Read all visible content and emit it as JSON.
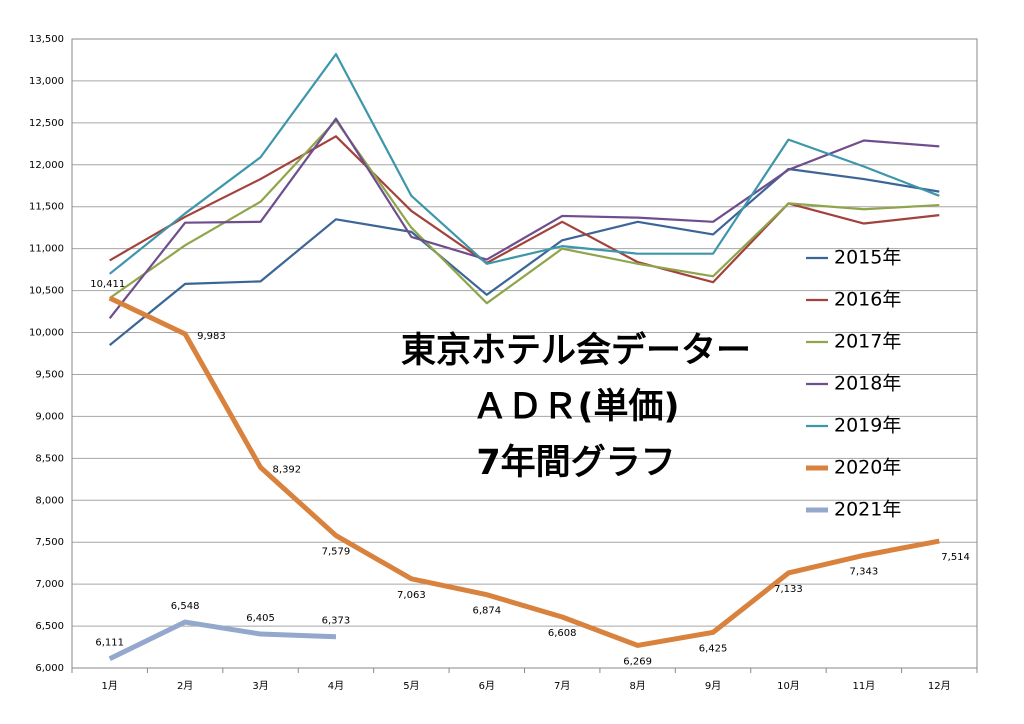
{
  "chart_data": {
    "type": "line",
    "title": [
      "東京ホテル会データー",
      "ＡＤＲ(単価)",
      "7年間グラフ"
    ],
    "categories": [
      "1月",
      "2月",
      "3月",
      "4月",
      "5月",
      "6月",
      "7月",
      "8月",
      "9月",
      "10月",
      "11月",
      "12月"
    ],
    "series": [
      {
        "name": "2015年",
        "color": "#3b6597",
        "width": 2.2,
        "values": [
          9850,
          10580,
          10610,
          11350,
          11200,
          10450,
          11100,
          11320,
          11170,
          11950,
          11830,
          11680
        ]
      },
      {
        "name": "2016年",
        "color": "#a3413d",
        "width": 2.2,
        "values": [
          10860,
          11380,
          11830,
          12340,
          11450,
          10830,
          11320,
          10840,
          10600,
          11540,
          11300,
          11400
        ]
      },
      {
        "name": "2017年",
        "color": "#8fa54b",
        "width": 2.2,
        "values": [
          10410,
          11040,
          11560,
          12530,
          11250,
          10350,
          11000,
          10820,
          10670,
          11540,
          11470,
          11520
        ]
      },
      {
        "name": "2018年",
        "color": "#6e4e8d",
        "width": 2.2,
        "values": [
          10170,
          11310,
          11320,
          12550,
          11140,
          10870,
          11390,
          11370,
          11320,
          11940,
          12290,
          12220
        ]
      },
      {
        "name": "2019年",
        "color": "#3e96aa",
        "width": 2.2,
        "values": [
          10700,
          11420,
          12090,
          13320,
          11630,
          10820,
          11030,
          10940,
          10940,
          12300,
          11980,
          11630
        ]
      },
      {
        "name": "2020年",
        "color": "#d9823e",
        "width": 5,
        "values": [
          10411,
          9983,
          8392,
          7579,
          7063,
          6874,
          6608,
          6269,
          6425,
          7133,
          7343,
          7514
        ],
        "value_labels": [
          "10,411",
          "9,983",
          "8,392",
          "7,579",
          "7,063",
          "6,874",
          "6,608",
          "6,269",
          "6,425",
          "7,133",
          "7,343",
          "7,514"
        ]
      },
      {
        "name": "2021年",
        "color": "#94a7cc",
        "width": 5,
        "values": [
          6111,
          6548,
          6405,
          6373,
          null,
          null,
          null,
          null,
          null,
          null,
          null,
          null
        ],
        "value_labels": [
          "6,111",
          "6,548",
          "6,405",
          "6,373",
          null,
          null,
          null,
          null,
          null,
          null,
          null,
          null
        ]
      }
    ],
    "ylim": [
      6000,
      13500
    ],
    "yticks": [
      {
        "value": 6000,
        "label": "6,000"
      },
      {
        "value": 6500,
        "label": "6,500"
      },
      {
        "value": 7000,
        "label": "7,000"
      },
      {
        "value": 7500,
        "label": "7,500"
      },
      {
        "value": 8000,
        "label": "8,000"
      },
      {
        "value": 8500,
        "label": "8,500"
      },
      {
        "value": 9000,
        "label": "9,000"
      },
      {
        "value": 9500,
        "label": "9,500"
      },
      {
        "value": 10000,
        "label": "10,000"
      },
      {
        "value": 10500,
        "label": "10,500"
      },
      {
        "value": 11000,
        "label": "11,000"
      },
      {
        "value": 11500,
        "label": "11,500"
      },
      {
        "value": 12000,
        "label": "12,000"
      },
      {
        "value": 12500,
        "label": "12,500"
      },
      {
        "value": 13000,
        "label": "13,000"
      },
      {
        "value": 13500,
        "label": "13,500"
      }
    ],
    "grid": true,
    "legend": "right"
  }
}
